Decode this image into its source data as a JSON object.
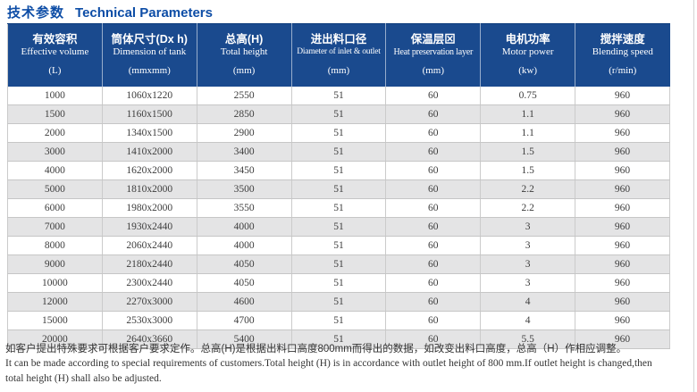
{
  "title": {
    "zh": "技术参数",
    "en": "Technical Parameters"
  },
  "table": {
    "columns": [
      {
        "zh": "有效容积",
        "en": "Effective volume",
        "unit": "(L)"
      },
      {
        "zh": "筒体尺寸(Dx h)",
        "en": "Dimension of tank",
        "unit": "(mmxmm)"
      },
      {
        "zh": "总高(H)",
        "en": "Total height",
        "unit": "(mm)"
      },
      {
        "zh": "进出料口径",
        "en": "Diameter of inlet & outlet",
        "unit": "(mm)"
      },
      {
        "zh": "保温层⊠",
        "en": "Heat preservation layer",
        "unit": "(mm)"
      },
      {
        "zh": "电机功率",
        "en": "Motor power",
        "unit": "(kw)"
      },
      {
        "zh": "搅拌速度",
        "en": "Blending speed",
        "unit": "(r/min)"
      }
    ],
    "rows": [
      [
        "1000",
        "1060x1220",
        "2550",
        "51",
        "60",
        "0.75",
        "960"
      ],
      [
        "1500",
        "1160x1500",
        "2850",
        "51",
        "60",
        "1.1",
        "960"
      ],
      [
        "2000",
        "1340x1500",
        "2900",
        "51",
        "60",
        "1.1",
        "960"
      ],
      [
        "3000",
        "1410x2000",
        "3400",
        "51",
        "60",
        "1.5",
        "960"
      ],
      [
        "4000",
        "1620x2000",
        "3450",
        "51",
        "60",
        "1.5",
        "960"
      ],
      [
        "5000",
        "1810x2000",
        "3500",
        "51",
        "60",
        "2.2",
        "960"
      ],
      [
        "6000",
        "1980x2000",
        "3550",
        "51",
        "60",
        "2.2",
        "960"
      ],
      [
        "7000",
        "1930x2440",
        "4000",
        "51",
        "60",
        "3",
        "960"
      ],
      [
        "8000",
        "2060x2440",
        "4000",
        "51",
        "60",
        "3",
        "960"
      ],
      [
        "9000",
        "2180x2440",
        "4050",
        "51",
        "60",
        "3",
        "960"
      ],
      [
        "10000",
        "2300x2440",
        "4050",
        "51",
        "60",
        "3",
        "960"
      ],
      [
        "12000",
        "2270x3000",
        "4600",
        "51",
        "60",
        "4",
        "960"
      ],
      [
        "15000",
        "2530x3000",
        "4700",
        "51",
        "60",
        "4",
        "960"
      ],
      [
        "20000",
        "2640x3660",
        "5400",
        "51",
        "60",
        "5.5",
        "960"
      ]
    ]
  },
  "footnote": {
    "zh": "如客户提出特殊要求可根据客户要求定作。总高(H)是根据出料口高度800mm而得出的数据，如改变出料口高度，总高（H）作相应调整。",
    "en_line1": "It can be made according to special requirements of customers.Total height (H) is in accordance with outlet height of 800 mm.If outlet height is changed,then",
    "en_line2": "total height (H) shall also be adjusted."
  },
  "colors": {
    "title_blue": "#0d4da6",
    "header_bg": "#1a4a8e",
    "stripe_gray": "#e4e4e5"
  }
}
